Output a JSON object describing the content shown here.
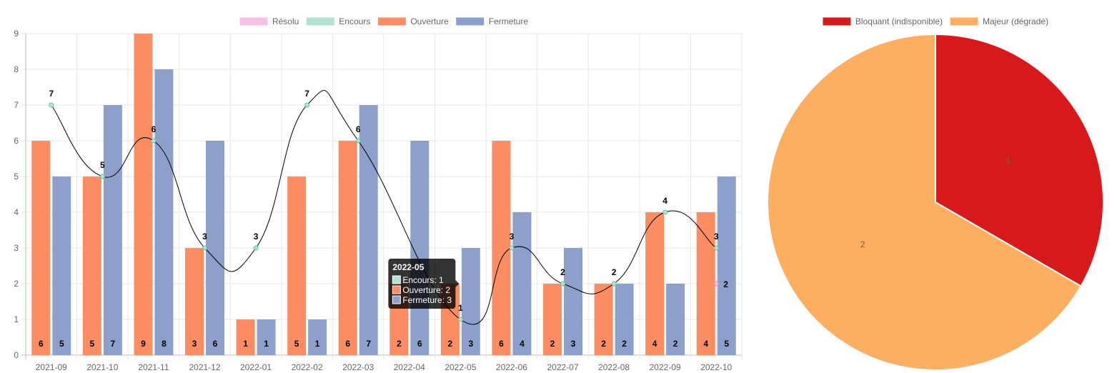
{
  "chart_data": [
    {
      "type": "bar",
      "legend_position": "top",
      "categories": [
        "2021-09",
        "2021-10",
        "2021-11",
        "2021-12",
        "2022-01",
        "2022-02",
        "2022-03",
        "2022-04",
        "2022-05",
        "2022-06",
        "2022-07",
        "2022-08",
        "2022-09",
        "2022-10"
      ],
      "ylim": [
        0,
        9
      ],
      "yticks": [
        0,
        1,
        2,
        3,
        4,
        5,
        6,
        7,
        8,
        9
      ],
      "grid": true,
      "series": [
        {
          "name": "Résolu",
          "type": "point",
          "color": "#f4c2e0",
          "values": [
            null,
            null,
            null,
            null,
            null,
            null,
            null,
            null,
            null,
            null,
            null,
            null,
            null,
            2
          ]
        },
        {
          "name": "Encours",
          "type": "line",
          "color": "#b2e2d2",
          "values": [
            7,
            5,
            6,
            3,
            3,
            7,
            6,
            null,
            1,
            3,
            2,
            2,
            4,
            3
          ]
        },
        {
          "name": "Ouverture",
          "type": "bar",
          "color": "#fc8d62",
          "values": [
            6,
            5,
            9,
            3,
            1,
            5,
            6,
            2,
            2,
            6,
            2,
            2,
            4,
            4
          ]
        },
        {
          "name": "Fermeture",
          "type": "bar",
          "color": "#8da0cb",
          "values": [
            5,
            7,
            8,
            6,
            1,
            1,
            7,
            6,
            3,
            4,
            3,
            2,
            2,
            5
          ]
        }
      ],
      "tooltip": {
        "title": "2022-05",
        "lines": [
          "Encours: 1",
          "Ouverture: 2",
          "Fermeture: 3"
        ]
      }
    },
    {
      "type": "pie",
      "legend_position": "top",
      "slices": [
        {
          "name": "Bloquant (indisponible)",
          "value": 1,
          "color": "#d7191c"
        },
        {
          "name": "Majeur (dégradé)",
          "value": 2,
          "color": "#fdae61"
        }
      ]
    }
  ]
}
